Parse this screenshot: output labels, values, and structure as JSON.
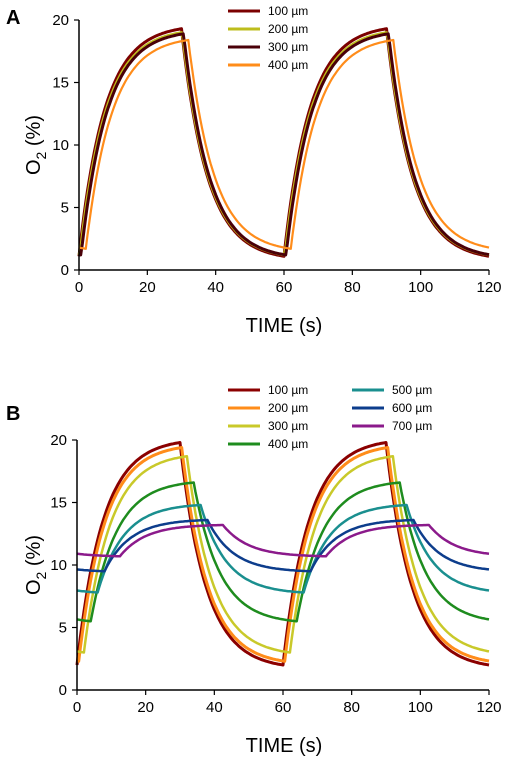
{
  "chart_data": [
    {
      "type": "line",
      "panel_label": "A",
      "xlabel": "TIME (s)",
      "ylabel": "O2 (%)",
      "xlim": [
        0,
        120
      ],
      "ylim": [
        0,
        20
      ],
      "x_ticks": [
        0,
        20,
        40,
        60,
        80,
        100,
        120
      ],
      "y_ticks": [
        0,
        5,
        10,
        15,
        20
      ],
      "grid": false,
      "legend_position": "top-center",
      "series": [
        {
          "name": "100 µm",
          "color": "#7b0000",
          "min": 1.1,
          "max": 19.3,
          "phase": 0,
          "width": 3
        },
        {
          "name": "200 µm",
          "color": "#bdbd1c",
          "min": 1.2,
          "max": 19.0,
          "phase": 0.3,
          "width": 3
        },
        {
          "name": "300 µm",
          "color": "#4a0008",
          "min": 1.2,
          "max": 18.9,
          "phase": 0.6,
          "width": 3
        },
        {
          "name": "400 µm",
          "color": "#ff8c1a",
          "min": 1.7,
          "max": 18.4,
          "phase": 2.0,
          "width": 2.2
        }
      ]
    },
    {
      "type": "line",
      "panel_label": "B",
      "xlabel": "TIME (s)",
      "ylabel": "O2 (%)",
      "xlim": [
        0,
        120
      ],
      "ylim": [
        0,
        20
      ],
      "x_ticks": [
        0,
        20,
        40,
        60,
        80,
        100,
        120
      ],
      "y_ticks": [
        0,
        5,
        10,
        15,
        20
      ],
      "grid": false,
      "legend_position": "top-right",
      "series": [
        {
          "name": "100 µm",
          "color": "#8b0000",
          "min": 2.0,
          "max": 19.8,
          "phase": 0,
          "width": 3
        },
        {
          "name": "200 µm",
          "color": "#ff8c1a",
          "min": 2.3,
          "max": 19.4,
          "phase": 0.5,
          "width": 3
        },
        {
          "name": "300 µm",
          "color": "#c9c92a",
          "min": 3.0,
          "max": 18.7,
          "phase": 2.0,
          "width": 2.5
        },
        {
          "name": "400 µm",
          "color": "#1e8c1e",
          "min": 5.5,
          "max": 16.6,
          "phase": 4.0,
          "width": 2.5
        },
        {
          "name": "500 µm",
          "color": "#1a8f8f",
          "min": 7.8,
          "max": 14.8,
          "phase": 6.0,
          "width": 2.5
        },
        {
          "name": "600 µm",
          "color": "#0d3d8c",
          "min": 9.5,
          "max": 13.6,
          "phase": 8.0,
          "width": 2.5
        },
        {
          "name": "700 µm",
          "color": "#8b1a8b",
          "min": 10.7,
          "max": 13.2,
          "phase": 12.5,
          "width": 2.5
        }
      ]
    }
  ]
}
